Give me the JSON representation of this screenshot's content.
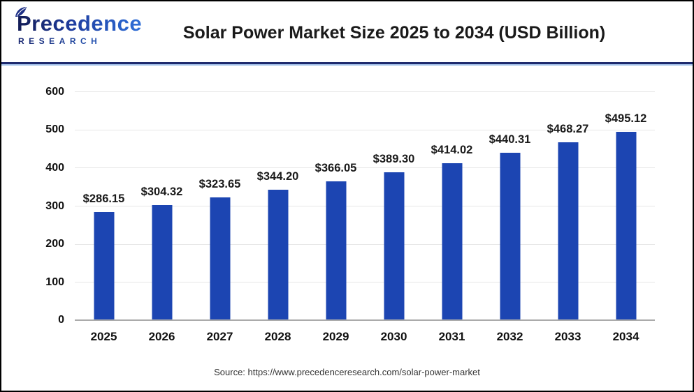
{
  "header": {
    "logo": {
      "name": "Precedence",
      "subname": "RESEARCH",
      "brand_navy": "#16246e",
      "brand_blue": "#2e6fd8"
    },
    "title": "Solar Power Market Size 2025 to 2034 (USD Billion)"
  },
  "chart_data": {
    "type": "bar",
    "title": "Solar Power Market Size 2025 to 2034 (USD Billion)",
    "categories": [
      "2025",
      "2026",
      "2027",
      "2028",
      "2029",
      "2030",
      "2031",
      "2032",
      "2033",
      "2034"
    ],
    "values": [
      286.15,
      304.32,
      323.65,
      344.2,
      366.05,
      389.3,
      414.02,
      440.31,
      468.27,
      495.12
    ],
    "value_labels": [
      "$286.15",
      "$304.32",
      "$323.65",
      "$344.20",
      "$366.05",
      "$389.30",
      "$414.02",
      "$440.31",
      "$468.27",
      "$495.12"
    ],
    "xlabel": "",
    "ylabel": "",
    "ylim": [
      0,
      600
    ],
    "y_ticks": [
      0,
      100,
      200,
      300,
      400,
      500,
      600
    ],
    "grid": true,
    "legend": "none",
    "bar_color": "#1c45b2",
    "gridline_color": "#e7e7e7",
    "baseline_color": "#ababab"
  },
  "footer": {
    "source": "Source: https://www.precedenceresearch.com/solar-power-market"
  }
}
